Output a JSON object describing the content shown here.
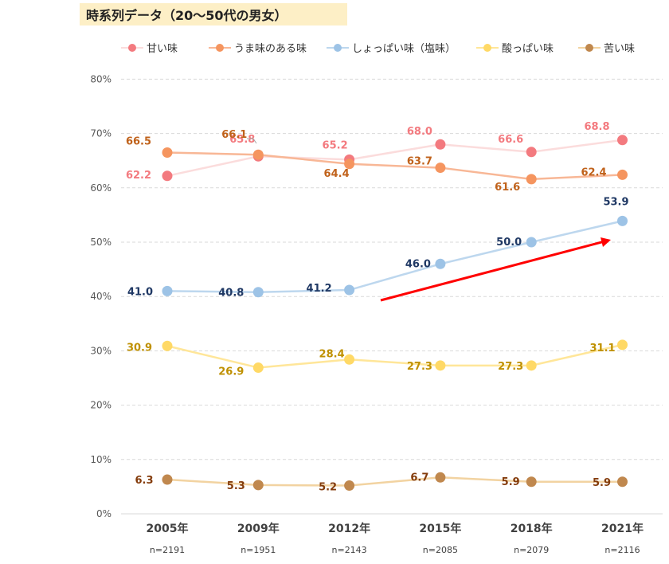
{
  "title": "時系列データ（20〜50代の男女）",
  "chart_data": {
    "type": "line",
    "categories": [
      "2005年",
      "2009年",
      "2012年",
      "2015年",
      "2018年",
      "2021年"
    ],
    "sample_sizes": [
      "n=2191",
      "n=1951",
      "n=2143",
      "n=2085",
      "n=2079",
      "n=2116"
    ],
    "ylim": [
      0,
      80
    ],
    "yticks": [
      "0%",
      "10%",
      "20%",
      "30%",
      "40%",
      "50%",
      "60%",
      "70%",
      "80%"
    ],
    "grid": true,
    "legend_position": "top",
    "series": [
      {
        "name": "甘い味",
        "values": [
          62.2,
          65.8,
          65.2,
          68.0,
          66.6,
          68.8
        ],
        "labels": [
          "62.2",
          "65.8",
          "65.2",
          "68.0",
          "66.6",
          "68.8"
        ],
        "marker_color": "#f37a7f",
        "line_color": "#fbdcdc",
        "label_color": "#f37a7f"
      },
      {
        "name": "うま味のある味",
        "values": [
          66.5,
          66.1,
          64.4,
          63.7,
          61.6,
          62.4
        ],
        "labels": [
          "66.5",
          "66.1",
          "64.4",
          "63.7",
          "61.6",
          "62.4"
        ],
        "marker_color": "#f5955f",
        "line_color": "#f8b796",
        "label_color": "#c0621b"
      },
      {
        "name": "しょっぱい味（塩味）",
        "values": [
          41.0,
          40.8,
          41.2,
          46.0,
          50.0,
          53.9
        ],
        "labels": [
          "41.0",
          "40.8",
          "41.2",
          "46.0",
          "50.0",
          "53.9"
        ],
        "marker_color": "#9dc3e6",
        "line_color": "#bdd7ee",
        "label_color": "#1f3864"
      },
      {
        "name": "酸っぱい味",
        "values": [
          30.9,
          26.9,
          28.4,
          27.3,
          27.3,
          31.1
        ],
        "labels": [
          "30.9",
          "26.9",
          "28.4",
          "27.3",
          "27.3",
          "31.1"
        ],
        "marker_color": "#ffd966",
        "line_color": "#ffe699",
        "label_color": "#bf9000"
      },
      {
        "name": "苦い味",
        "values": [
          6.3,
          5.3,
          5.2,
          6.7,
          5.9,
          5.9
        ],
        "labels": [
          "6.3",
          "5.3",
          "5.2",
          "6.7",
          "5.9",
          "5.9"
        ],
        "marker_color": "#c0884e",
        "line_color": "#f2d3a1",
        "label_color": "#843c0c"
      }
    ],
    "arrow_color": "#ff0000"
  }
}
